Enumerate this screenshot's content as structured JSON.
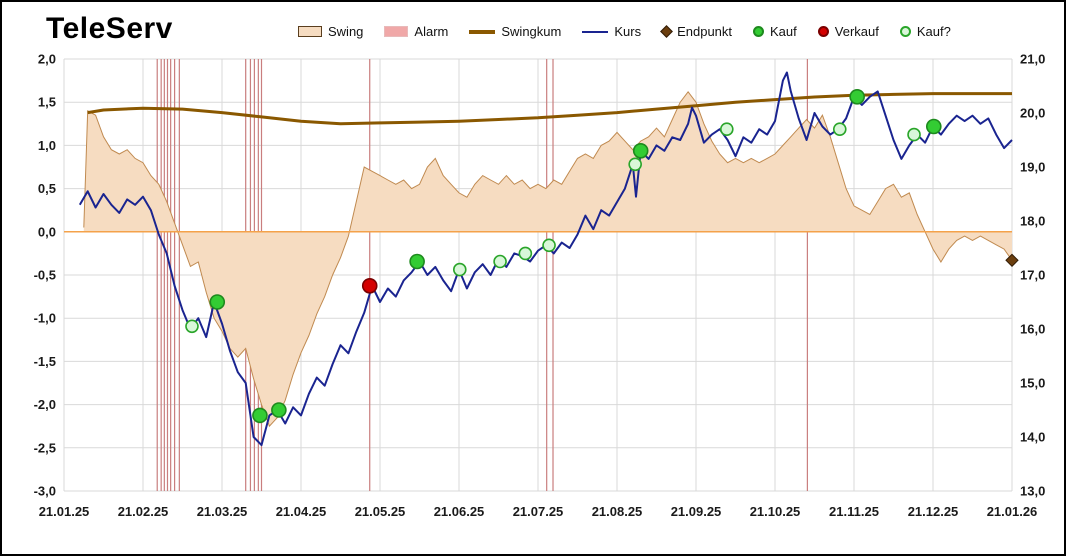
{
  "title": "TeleServ",
  "legend": {
    "items": [
      {
        "label": "Swing",
        "swatch": "area-swatch"
      },
      {
        "label": "Alarm",
        "swatch": "alarm-swatch"
      },
      {
        "label": "Swingkum",
        "swatch": "line-brown"
      },
      {
        "label": "Kurs",
        "swatch": "line-navy"
      },
      {
        "label": "Endpunkt",
        "swatch": "diamond"
      },
      {
        "label": "Kauf",
        "swatch": "dot-green"
      },
      {
        "label": "Verkauf",
        "swatch": "dot-red"
      },
      {
        "label": "Kauf?",
        "swatch": "dot-open"
      }
    ]
  },
  "colors": {
    "swing_fill": "#f6dcc1",
    "swing_stroke": "#c08a50",
    "alarm": "#c97e7e",
    "swingkum": "#8a5800",
    "kurs": "#1a2490",
    "zero_line": "#f4a24a",
    "grid": "#d9d9d9",
    "kauf_fill": "#33cc33",
    "kauf_stroke": "#1e8a1e",
    "verkauf_fill": "#d40000",
    "verkauf_stroke": "#7a0000",
    "kauf_q_fill": "#d9f7d9",
    "kauf_q_stroke": "#2aa52a",
    "endpunkt": "#6b3e0e",
    "tick_text": "#1a1a1a"
  },
  "chart_data": {
    "type": "line",
    "title": "TeleServ",
    "grid": true,
    "legend_position": "top",
    "x_axis": {
      "tick_labels": [
        "21.01.25",
        "21.02.25",
        "21.03.25",
        "21.04.25",
        "21.05.25",
        "21.06.25",
        "21.07.25",
        "21.08.25",
        "21.09.25",
        "21.10.25",
        "21.11.25",
        "21.12.25",
        "21.01.26"
      ],
      "range_months": [
        0,
        12
      ]
    },
    "y_left": {
      "ticks": [
        "2,0",
        "1,5",
        "1,0",
        "0,5",
        "0,0",
        "-0,5",
        "-1,0",
        "-1,5",
        "-2,0",
        "-2,5",
        "-3,0"
      ],
      "max": 2.0,
      "min": -3.0,
      "step": 0.5
    },
    "y_right": {
      "ticks": [
        "21,0",
        "20,0",
        "19,0",
        "18,0",
        "17,0",
        "16,0",
        "15,0",
        "14,0",
        "13,0"
      ],
      "max": 21.0,
      "min": 13.0,
      "step": 1.0
    },
    "series": [
      {
        "name": "Swing",
        "axis": "left",
        "style": "area",
        "x": [
          0.25,
          0.3,
          0.4,
          0.5,
          0.6,
          0.7,
          0.8,
          0.9,
          1.0,
          1.1,
          1.2,
          1.3,
          1.4,
          1.5,
          1.6,
          1.7,
          1.8,
          1.9,
          2.0,
          2.1,
          2.2,
          2.3,
          2.4,
          2.5,
          2.6,
          2.7,
          2.8,
          2.9,
          3.0,
          3.1,
          3.2,
          3.3,
          3.4,
          3.5,
          3.6,
          3.7,
          3.8,
          3.9,
          4.0,
          4.1,
          4.2,
          4.3,
          4.4,
          4.5,
          4.6,
          4.7,
          4.8,
          4.9,
          5.0,
          5.1,
          5.2,
          5.3,
          5.4,
          5.5,
          5.6,
          5.7,
          5.8,
          5.9,
          6.0,
          6.1,
          6.2,
          6.3,
          6.4,
          6.5,
          6.6,
          6.7,
          6.8,
          6.9,
          7.0,
          7.1,
          7.2,
          7.3,
          7.4,
          7.5,
          7.6,
          7.7,
          7.8,
          7.9,
          8.0,
          8.1,
          8.2,
          8.3,
          8.4,
          8.5,
          8.6,
          8.7,
          8.8,
          8.9,
          9.0,
          9.1,
          9.2,
          9.3,
          9.4,
          9.5,
          9.6,
          9.7,
          9.8,
          9.9,
          10.0,
          10.1,
          10.2,
          10.3,
          10.4,
          10.5,
          10.6,
          10.7,
          10.8,
          10.9,
          11.0,
          11.1,
          11.2,
          11.3,
          11.4,
          11.5,
          11.6,
          11.7,
          11.8,
          11.9,
          12.0
        ],
        "y": [
          0.05,
          1.4,
          1.35,
          1.1,
          0.95,
          0.9,
          0.95,
          0.85,
          0.8,
          0.65,
          0.55,
          0.35,
          0.1,
          -0.15,
          -0.4,
          -0.35,
          -0.7,
          -1.0,
          -1.15,
          -1.35,
          -1.45,
          -1.35,
          -1.7,
          -2.0,
          -2.25,
          -2.15,
          -1.95,
          -1.65,
          -1.4,
          -1.2,
          -0.95,
          -0.75,
          -0.5,
          -0.3,
          -0.05,
          0.35,
          0.75,
          0.7,
          0.65,
          0.6,
          0.55,
          0.6,
          0.5,
          0.55,
          0.75,
          0.85,
          0.65,
          0.55,
          0.45,
          0.4,
          0.55,
          0.65,
          0.6,
          0.55,
          0.65,
          0.55,
          0.6,
          0.5,
          0.55,
          0.5,
          0.6,
          0.55,
          0.7,
          0.85,
          0.9,
          0.85,
          1.0,
          1.05,
          1.15,
          1.05,
          0.95,
          1.05,
          1.1,
          1.2,
          1.1,
          1.3,
          1.5,
          1.62,
          1.5,
          1.25,
          1.05,
          0.9,
          0.8,
          0.85,
          0.8,
          0.85,
          0.8,
          0.85,
          0.9,
          1.0,
          1.1,
          1.2,
          1.3,
          1.2,
          1.35,
          1.1,
          0.8,
          0.5,
          0.3,
          0.25,
          0.2,
          0.35,
          0.5,
          0.55,
          0.4,
          0.45,
          0.2,
          0.0,
          -0.2,
          -0.35,
          -0.2,
          -0.1,
          -0.05,
          -0.1,
          -0.05,
          -0.1,
          -0.15,
          -0.2,
          -0.33
        ]
      },
      {
        "name": "Swingkum",
        "axis": "left",
        "style": "line",
        "x": [
          0.3,
          0.5,
          1.0,
          1.5,
          2.0,
          2.5,
          3.0,
          3.5,
          4.0,
          4.5,
          5.0,
          5.5,
          6.0,
          6.5,
          7.0,
          7.5,
          8.0,
          8.5,
          9.0,
          9.5,
          10.0,
          10.5,
          11.0,
          11.5,
          12.0
        ],
        "y": [
          1.38,
          1.41,
          1.43,
          1.42,
          1.38,
          1.33,
          1.28,
          1.25,
          1.26,
          1.27,
          1.28,
          1.3,
          1.32,
          1.35,
          1.38,
          1.42,
          1.46,
          1.5,
          1.53,
          1.56,
          1.58,
          1.59,
          1.6,
          1.6,
          1.6
        ]
      },
      {
        "name": "Kurs",
        "axis": "right",
        "style": "line",
        "x": [
          0.2,
          0.3,
          0.4,
          0.5,
          0.6,
          0.7,
          0.8,
          0.9,
          1.0,
          1.1,
          1.2,
          1.3,
          1.4,
          1.5,
          1.6,
          1.7,
          1.8,
          1.9,
          2.0,
          2.1,
          2.2,
          2.3,
          2.4,
          2.5,
          2.6,
          2.7,
          2.8,
          2.9,
          3.0,
          3.1,
          3.2,
          3.3,
          3.4,
          3.5,
          3.6,
          3.7,
          3.8,
          3.9,
          4.0,
          4.1,
          4.2,
          4.3,
          4.4,
          4.5,
          4.6,
          4.7,
          4.8,
          4.9,
          5.0,
          5.1,
          5.2,
          5.3,
          5.4,
          5.5,
          5.6,
          5.7,
          5.8,
          5.9,
          6.0,
          6.1,
          6.2,
          6.3,
          6.4,
          6.5,
          6.6,
          6.7,
          6.8,
          6.9,
          7.0,
          7.1,
          7.2,
          7.24,
          7.3,
          7.4,
          7.5,
          7.6,
          7.7,
          7.8,
          7.9,
          7.95,
          8.0,
          8.1,
          8.2,
          8.3,
          8.4,
          8.5,
          8.6,
          8.7,
          8.8,
          8.9,
          9.0,
          9.1,
          9.15,
          9.2,
          9.3,
          9.4,
          9.5,
          9.6,
          9.7,
          9.8,
          9.9,
          10.0,
          10.1,
          10.2,
          10.3,
          10.4,
          10.5,
          10.6,
          10.7,
          10.8,
          10.9,
          11.0,
          11.1,
          11.2,
          11.3,
          11.4,
          11.5,
          11.6,
          11.7,
          11.8,
          11.9,
          12.0
        ],
        "y": [
          18.3,
          18.55,
          18.25,
          18.5,
          18.3,
          18.15,
          18.4,
          18.3,
          18.45,
          18.2,
          17.75,
          17.4,
          16.8,
          16.35,
          16.0,
          16.2,
          15.85,
          16.5,
          16.1,
          15.6,
          15.2,
          15.0,
          14.0,
          13.85,
          14.4,
          14.5,
          14.25,
          14.55,
          14.4,
          14.8,
          15.1,
          14.95,
          15.35,
          15.7,
          15.55,
          15.95,
          16.3,
          16.8,
          16.5,
          16.75,
          16.6,
          16.9,
          17.05,
          17.25,
          17.0,
          17.15,
          16.9,
          16.7,
          17.1,
          16.75,
          17.05,
          17.2,
          17.0,
          17.3,
          17.15,
          17.4,
          17.35,
          17.25,
          17.45,
          17.55,
          17.4,
          17.6,
          17.5,
          17.75,
          18.1,
          17.85,
          18.2,
          18.1,
          18.35,
          18.6,
          19.05,
          18.45,
          19.3,
          19.15,
          19.4,
          19.3,
          19.55,
          19.5,
          19.8,
          20.1,
          19.95,
          19.45,
          19.6,
          19.7,
          19.5,
          19.2,
          19.55,
          19.45,
          19.7,
          19.6,
          19.85,
          20.6,
          20.75,
          20.4,
          19.9,
          19.5,
          20.0,
          19.75,
          19.6,
          19.7,
          19.9,
          20.3,
          20.15,
          20.3,
          20.4,
          19.95,
          19.5,
          19.15,
          19.4,
          19.6,
          19.45,
          19.75,
          19.6,
          19.8,
          19.95,
          19.85,
          19.95,
          19.8,
          19.9,
          19.6,
          19.35,
          19.5
        ]
      }
    ],
    "alarms": {
      "months": [
        1.18,
        1.23,
        1.27,
        1.31,
        1.35,
        1.4,
        1.46,
        2.3,
        2.36,
        2.41,
        2.46,
        2.5,
        3.87,
        6.11,
        6.19,
        9.41
      ]
    },
    "markers": {
      "kauf": [
        {
          "x": 1.94,
          "y": 16.5
        },
        {
          "x": 2.48,
          "y": 14.4
        },
        {
          "x": 2.72,
          "y": 14.5
        },
        {
          "x": 4.47,
          "y": 17.25
        },
        {
          "x": 7.3,
          "y": 19.3
        },
        {
          "x": 10.04,
          "y": 20.3
        },
        {
          "x": 11.01,
          "y": 19.75
        }
      ],
      "verkauf": [
        {
          "x": 3.87,
          "y": 16.8
        }
      ],
      "kauf_question": [
        {
          "x": 1.62,
          "y": 16.05
        },
        {
          "x": 5.01,
          "y": 17.1
        },
        {
          "x": 5.52,
          "y": 17.25
        },
        {
          "x": 5.84,
          "y": 17.4
        },
        {
          "x": 6.14,
          "y": 17.55
        },
        {
          "x": 7.23,
          "y": 19.05
        },
        {
          "x": 8.39,
          "y": 19.7
        },
        {
          "x": 9.82,
          "y": 19.7
        },
        {
          "x": 10.76,
          "y": 19.6
        }
      ],
      "endpunkt": {
        "x": 12.0,
        "y": -0.33,
        "axis": "left"
      }
    }
  }
}
